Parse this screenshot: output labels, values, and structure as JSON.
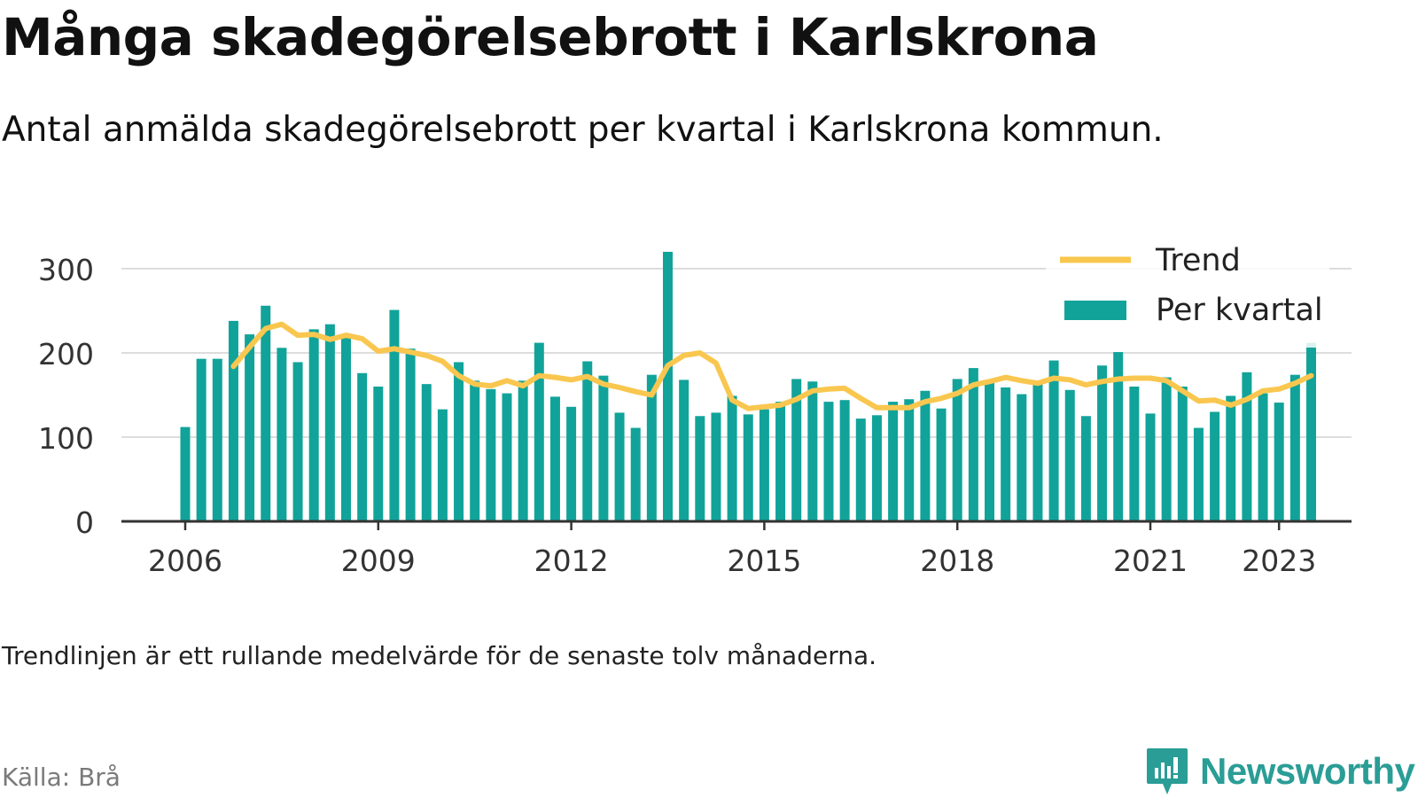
{
  "header": {
    "title": "Många skadegörelsebrott i Karlskrona",
    "subtitle": "Antal anmälda skadegörelsebrott per kvartal i Karlskrona kommun."
  },
  "footer": {
    "note": "Trendlinjen är ett rullande medelvärde för de senaste tolv månaderna.",
    "source": "Källa: Brå",
    "brand": "Newsworthy"
  },
  "colors": {
    "bar": "#11a39a",
    "trend": "#f9c74f",
    "grid": "#dddddd",
    "axis": "#333333",
    "brand": "#2a9d96"
  },
  "chart_data": {
    "type": "bar",
    "xlabel": "",
    "ylabel": "",
    "ylim": [
      0,
      330
    ],
    "yticks": [
      0,
      100,
      200,
      300
    ],
    "xticks": [
      {
        "label": "2006",
        "year": 2006
      },
      {
        "label": "2009",
        "year": 2009
      },
      {
        "label": "2012",
        "year": 2012
      },
      {
        "label": "2015",
        "year": 2015
      },
      {
        "label": "2018",
        "year": 2018
      },
      {
        "label": "2021",
        "year": 2021
      },
      {
        "label": "2023",
        "year": 2023
      }
    ],
    "first_quarter": "2006 Q1",
    "grid": true,
    "legend_position": "top-right",
    "series": [
      {
        "name": "Per kvartal",
        "kind": "bar",
        "values": [
          112,
          193,
          193,
          238,
          222,
          256,
          206,
          189,
          228,
          234,
          222,
          176,
          160,
          251,
          205,
          163,
          133,
          189,
          167,
          157,
          152,
          167,
          212,
          148,
          136,
          190,
          173,
          129,
          111,
          174,
          320,
          168,
          125,
          129,
          149,
          127,
          133,
          142,
          169,
          166,
          142,
          144,
          122,
          126,
          142,
          145,
          155,
          134,
          169,
          182,
          167,
          159,
          151,
          165,
          191,
          156,
          125,
          185,
          201,
          160,
          128,
          171,
          160,
          111,
          130,
          149,
          177,
          152,
          141,
          174,
          212
        ]
      },
      {
        "name": "Trend",
        "kind": "line",
        "values": [
          null,
          null,
          null,
          184,
          207,
          229,
          234,
          221,
          222,
          216,
          221,
          217,
          202,
          205,
          201,
          197,
          190,
          173,
          163,
          161,
          167,
          161,
          173,
          171,
          168,
          172,
          163,
          159,
          154,
          150,
          185,
          197,
          200,
          188,
          144,
          134,
          136,
          138,
          145,
          155,
          157,
          158,
          146,
          135,
          135,
          135,
          142,
          146,
          152,
          162,
          166,
          171,
          167,
          164,
          170,
          168,
          162,
          166,
          169,
          170,
          170,
          167,
          155,
          143,
          144,
          138,
          145,
          155,
          157,
          164,
          173
        ]
      }
    ]
  }
}
